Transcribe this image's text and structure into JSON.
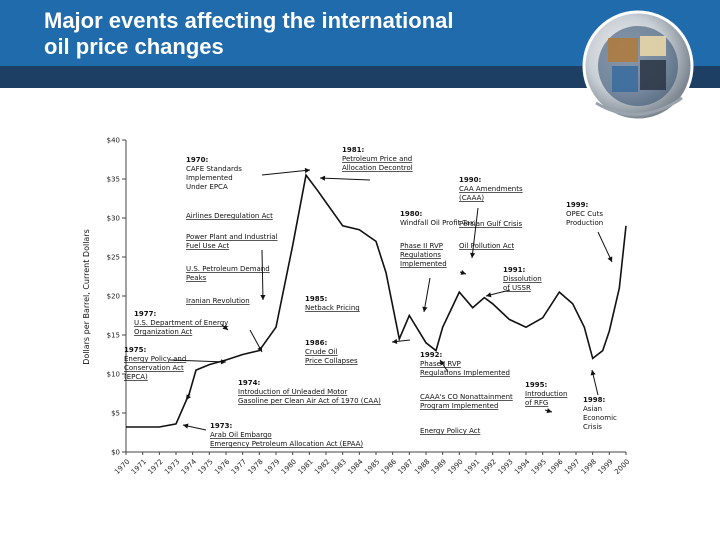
{
  "slide": {
    "title_line1": "Major events affecting the international",
    "title_line2": "oil price changes"
  },
  "colors": {
    "header": "#1f6bab",
    "header_band": "#1d3f63",
    "line": "#111111"
  },
  "chart_data": {
    "type": "line",
    "title": "",
    "xlabel": "",
    "ylabel": "Dollars per Barrel, Current Dollars",
    "ylim": [
      0,
      40
    ],
    "y_ticks": [
      "$0",
      "$5",
      "$10",
      "$15",
      "$20",
      "$25",
      "$30",
      "$35",
      "$40"
    ],
    "y_tick_values": [
      0,
      5,
      10,
      15,
      20,
      25,
      30,
      35,
      40
    ],
    "x_tick_labels": [
      "1970",
      "1971",
      "1972",
      "1973",
      "1974",
      "1975",
      "1976",
      "1977",
      "1978",
      "1979",
      "1980",
      "1981",
      "1982",
      "1983",
      "1984",
      "1985",
      "1986",
      "1987",
      "1988",
      "1989",
      "1990",
      "1991",
      "1992",
      "1993",
      "1994",
      "1995",
      "1996",
      "1997",
      "1998",
      "1999",
      "2000"
    ],
    "series": [
      {
        "name": "Oil price",
        "x": [
          1970,
          1971,
          1972,
          1973,
          1973.8,
          1974.2,
          1975,
          1976,
          1977,
          1978,
          1979,
          1980,
          1980.8,
          1981.5,
          1982,
          1983,
          1984,
          1985,
          1985.6,
          1986.4,
          1987,
          1988,
          1988.6,
          1989,
          1990,
          1990.8,
          1991.5,
          1992,
          1993,
          1994,
          1995,
          1996,
          1996.8,
          1997.5,
          1998,
          1998.6,
          1999,
          1999.6,
          2000
        ],
        "values": [
          3.2,
          3.2,
          3.2,
          3.6,
          7.5,
          10.5,
          11.2,
          11.8,
          12.5,
          13.0,
          16.0,
          26.5,
          35.5,
          33.5,
          32.0,
          29.0,
          28.5,
          27.0,
          23.0,
          14.5,
          17.5,
          14.0,
          13.0,
          16.0,
          20.5,
          18.5,
          19.8,
          19.0,
          17.0,
          16.0,
          17.2,
          20.5,
          19.0,
          16.0,
          12.0,
          13.0,
          15.5,
          21.0,
          29.0
        ]
      }
    ],
    "annotations": [
      {
        "year": "1970:",
        "lines": [
          "CAFE Standards",
          "Implemented",
          "Under EPCA"
        ]
      },
      {
        "year": "1981:",
        "lines": [
          "Petroleum Price and",
          "Allocation Decontrol"
        ]
      },
      {
        "year": "1990:",
        "lines": [
          "CAA Amendments",
          "(CAAA)"
        ]
      },
      {
        "year": "1999:",
        "lines": [
          "OPEC Cuts",
          "Production"
        ]
      },
      {
        "year": "",
        "lines": [
          "Airlines Deregulation Act"
        ]
      },
      {
        "year": "",
        "lines": [
          "Power Plant and Industrial",
          "Fuel Use Act"
        ]
      },
      {
        "year": "",
        "lines": [
          "U.S. Petroleum Demand",
          "Peaks"
        ]
      },
      {
        "year": "",
        "lines": [
          "Iranian Revolution"
        ]
      },
      {
        "year": "1980:",
        "lines": [
          "Windfall Oil Profit Tax"
        ]
      },
      {
        "year": "",
        "lines": [
          "Persian Gulf Crisis"
        ]
      },
      {
        "year": "",
        "lines": [
          "Phase II RVP",
          "Regulations",
          "Implemented"
        ]
      },
      {
        "year": "",
        "lines": [
          "Oil Pollution Act"
        ]
      },
      {
        "year": "1991:",
        "lines": [
          "Dissolution",
          "of USSR"
        ]
      },
      {
        "year": "1985:",
        "lines": [
          "Netback Pricing"
        ]
      },
      {
        "year": "1977:",
        "lines": [
          "U.S. Department of Energy",
          "Organization Act"
        ]
      },
      {
        "year": "1986:",
        "lines": [
          "Crude Oil",
          "Price Collapses"
        ]
      },
      {
        "year": "1975:",
        "lines": [
          "Energy Policy and",
          "Conservation Act",
          "(EPCA)"
        ]
      },
      {
        "year": "1992:",
        "lines": [
          "Phase I RVP",
          "Regulations Implemented"
        ]
      },
      {
        "year": "1974:",
        "lines": [
          "Introduction of Unleaded Motor",
          "Gasoline per Clean Air Act of 1970 (CAA)"
        ]
      },
      {
        "year": "",
        "lines": [
          "CAAA's CO Nonattainment",
          "Program Implemented"
        ]
      },
      {
        "year": "1995:",
        "lines": [
          "Introduction",
          "of RFG"
        ]
      },
      {
        "year": "1998:",
        "lines": [
          "Asian",
          "Economic",
          "Crisis"
        ]
      },
      {
        "year": "",
        "lines": [
          "Energy Policy Act"
        ]
      },
      {
        "year": "1973:",
        "lines": [
          "Arab Oil Embargo",
          "Emergency Petroleum Allocation Act (EPAA)"
        ]
      }
    ]
  }
}
